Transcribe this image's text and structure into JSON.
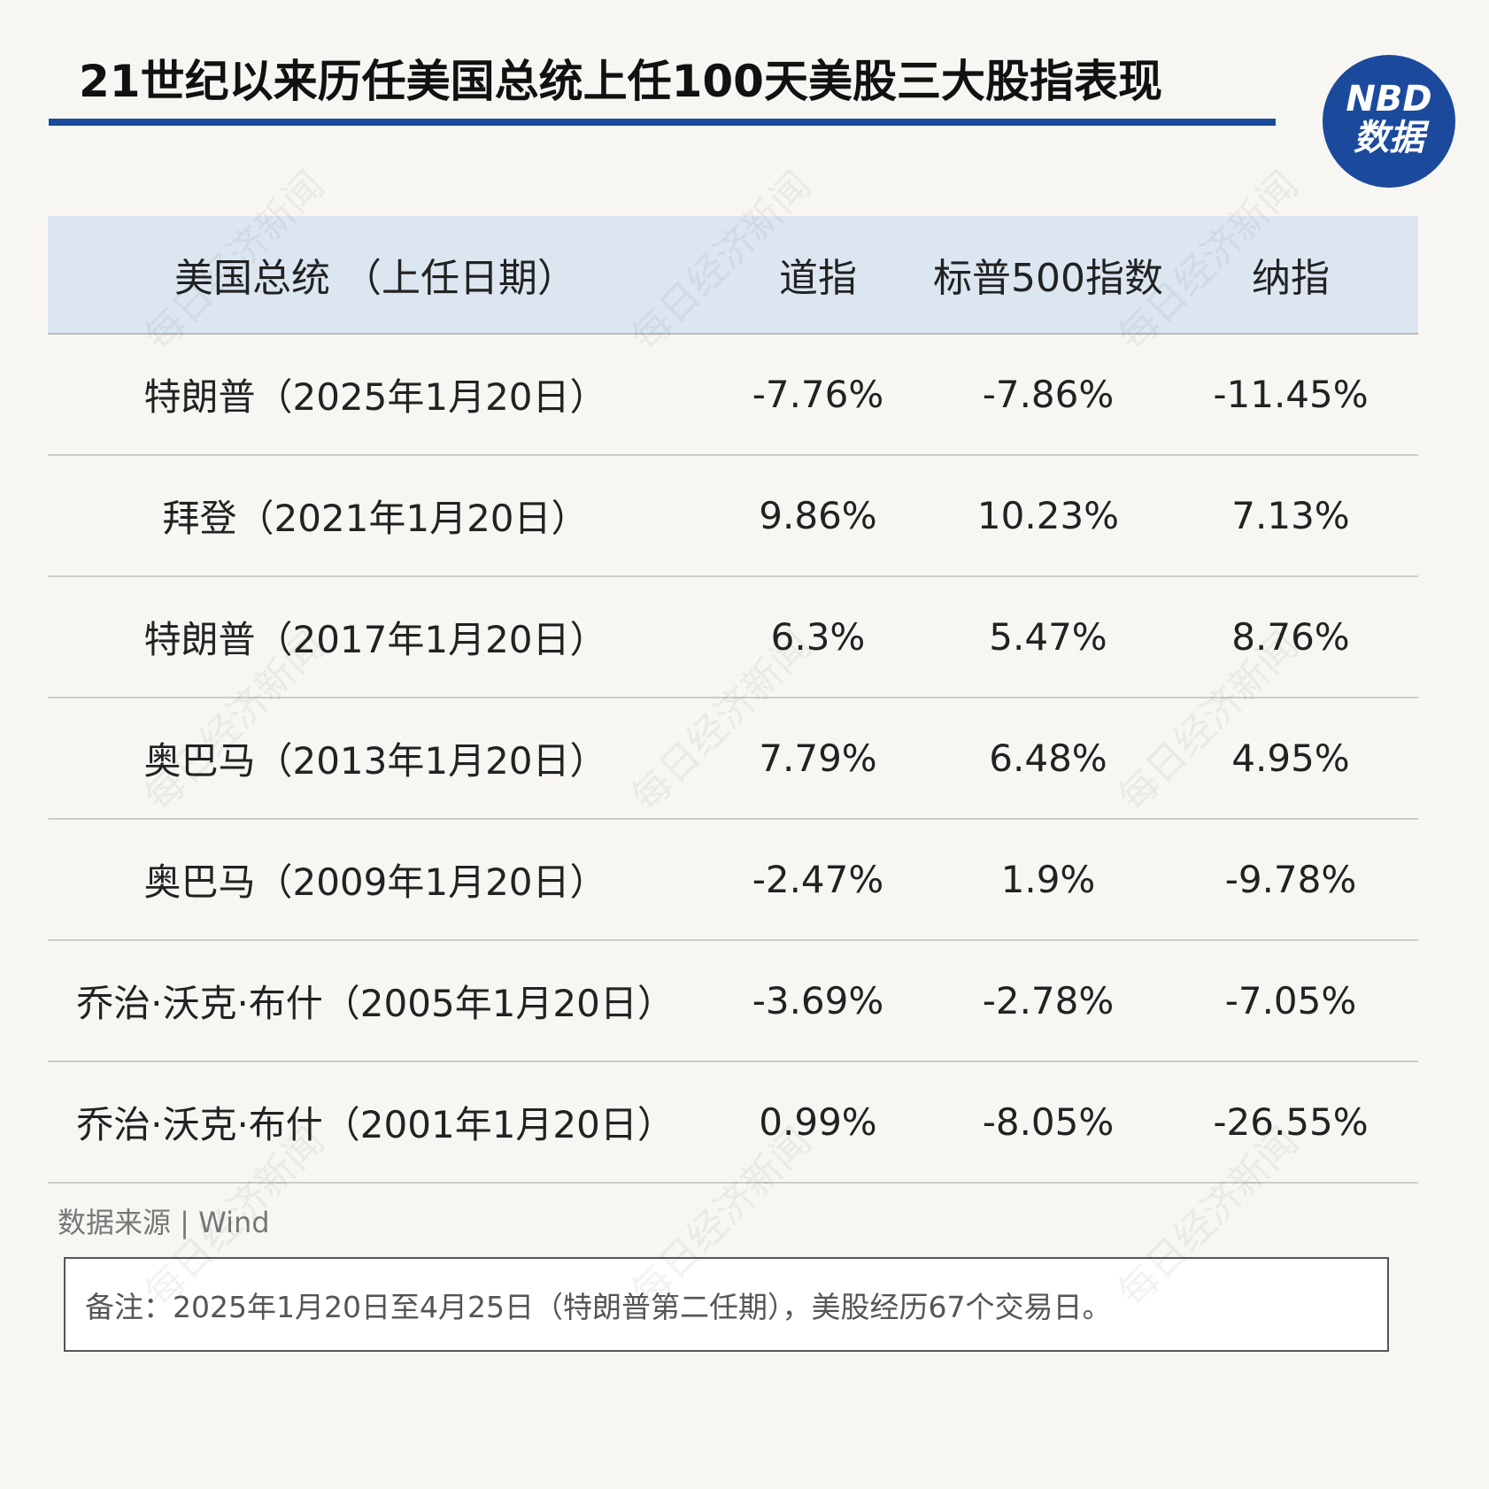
{
  "header": {
    "title": "21世纪以来历任美国总统上任100天美股三大股指表现",
    "logo": {
      "line1": "NBD",
      "line2": "数据"
    }
  },
  "watermark": "每日经济新闻",
  "table": {
    "headers": [
      "美国总统 （上任日期）",
      "道指",
      "标普500指数",
      "纳指"
    ],
    "rows": [
      [
        "特朗普（2025年1月20日）",
        "-7.76%",
        "-7.86%",
        "-11.45%"
      ],
      [
        "拜登（2021年1月20日）",
        "9.86%",
        "10.23%",
        "7.13%"
      ],
      [
        "特朗普（2017年1月20日）",
        "6.3%",
        "5.47%",
        "8.76%"
      ],
      [
        "奥巴马（2013年1月20日）",
        "7.79%",
        "6.48%",
        "4.95%"
      ],
      [
        "奥巴马（2009年1月20日）",
        "-2.47%",
        "1.9%",
        "-9.78%"
      ],
      [
        "乔治·沃克·布什（2005年1月20日）",
        "-3.69%",
        "-2.78%",
        "-7.05%"
      ],
      [
        "乔治·沃克·布什（2001年1月20日）",
        "0.99%",
        "-8.05%",
        "-26.55%"
      ]
    ]
  },
  "source": "数据来源 | Wind",
  "note": "备注：2025年1月20日至4月25日（特朗普第二任期），美股经历67个交易日。"
}
